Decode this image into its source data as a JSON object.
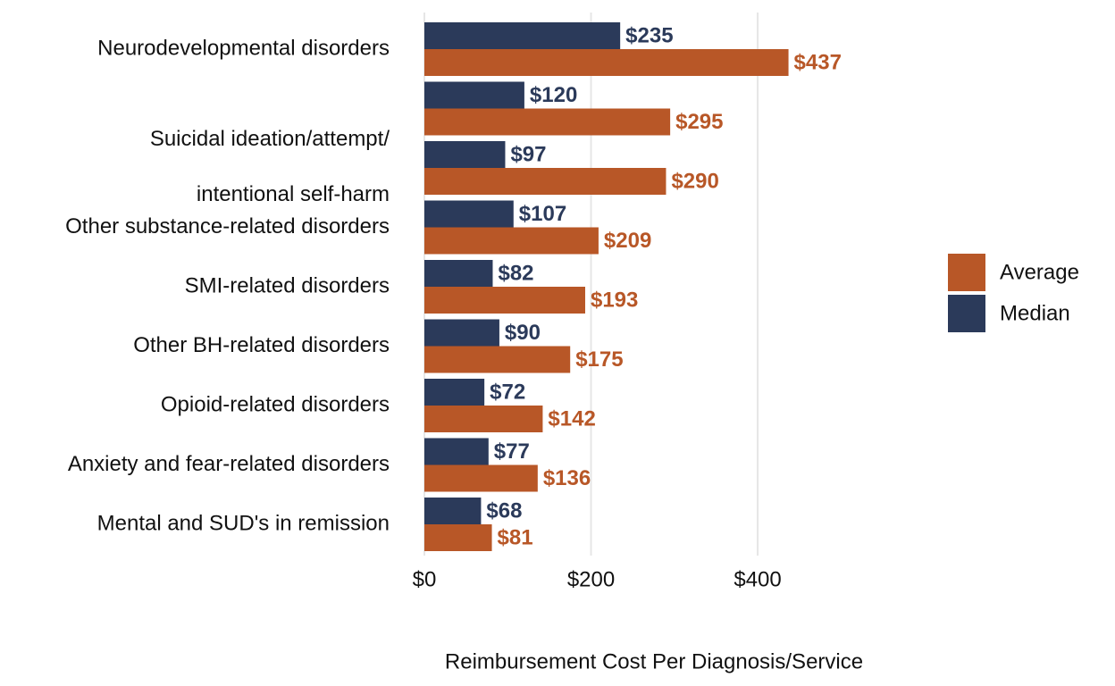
{
  "chart_data": {
    "type": "bar",
    "orientation": "horizontal",
    "x_label": "Reimbursement Cost Per Diagnosis/Service",
    "categories": [
      "Neurodevelopmental disorders",
      null,
      "Suicidal ideation/attempt/\nintentional self-harm",
      "Other substance-related disorders",
      "SMI-related disorders",
      "Other BH-related disorders",
      "Opioid-related disorders",
      "Anxiety and fear-related disorders",
      "Mental and SUD's in remission"
    ],
    "series": [
      {
        "name": "Average",
        "color": "#b85727",
        "values": [
          437,
          295,
          290,
          209,
          193,
          175,
          142,
          136,
          81
        ],
        "value_labels": [
          "$437",
          "$295",
          "$290",
          "$209",
          "$193",
          "$175",
          "$142",
          "$136",
          "$81"
        ]
      },
      {
        "name": "Median",
        "color": "#2b3a5a",
        "values": [
          235,
          120,
          97,
          107,
          82,
          90,
          72,
          77,
          68
        ],
        "value_labels": [
          "$235",
          "$120",
          "$97",
          "$107",
          "$82",
          "$90",
          "$72",
          "$77",
          "$68"
        ]
      }
    ],
    "xlim": [
      0,
      460
    ],
    "xticks": [
      {
        "value": 0,
        "label": "$0"
      },
      {
        "value": 200,
        "label": "$200"
      },
      {
        "value": 400,
        "label": "$400"
      }
    ],
    "grid": true,
    "legend": "right"
  }
}
